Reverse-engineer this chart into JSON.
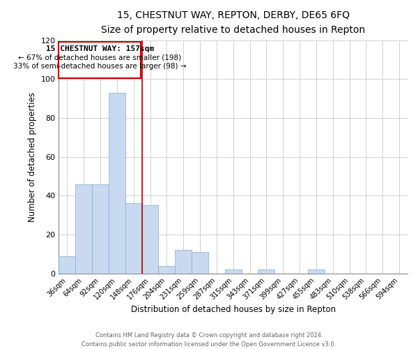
{
  "title": "15, CHESTNUT WAY, REPTON, DERBY, DE65 6FQ",
  "subtitle": "Size of property relative to detached houses in Repton",
  "xlabel": "Distribution of detached houses by size in Repton",
  "ylabel": "Number of detached properties",
  "bar_labels": [
    "36sqm",
    "64sqm",
    "92sqm",
    "120sqm",
    "148sqm",
    "176sqm",
    "204sqm",
    "231sqm",
    "259sqm",
    "287sqm",
    "315sqm",
    "343sqm",
    "371sqm",
    "399sqm",
    "427sqm",
    "455sqm",
    "483sqm",
    "510sqm",
    "538sqm",
    "566sqm",
    "594sqm"
  ],
  "bar_values": [
    9,
    46,
    46,
    93,
    36,
    35,
    4,
    12,
    11,
    0,
    2,
    0,
    2,
    0,
    0,
    2,
    0,
    0,
    0,
    0,
    0
  ],
  "bar_color": "#c9d9f0",
  "bar_edge_color": "#7fafd4",
  "property_line_x": 4.5,
  "property_line_color": "#aa0000",
  "annotation_box_color": "#cc0000",
  "annotation_line1": "15 CHESTNUT WAY: 157sqm",
  "annotation_line2": "← 67% of detached houses are smaller (198)",
  "annotation_line3": "33% of semi-detached houses are larger (98) →",
  "ylim": [
    0,
    120
  ],
  "yticks": [
    0,
    20,
    40,
    60,
    80,
    100,
    120
  ],
  "footer_line1": "Contains HM Land Registry data © Crown copyright and database right 2024.",
  "footer_line2": "Contains public sector information licensed under the Open Government Licence v3.0."
}
